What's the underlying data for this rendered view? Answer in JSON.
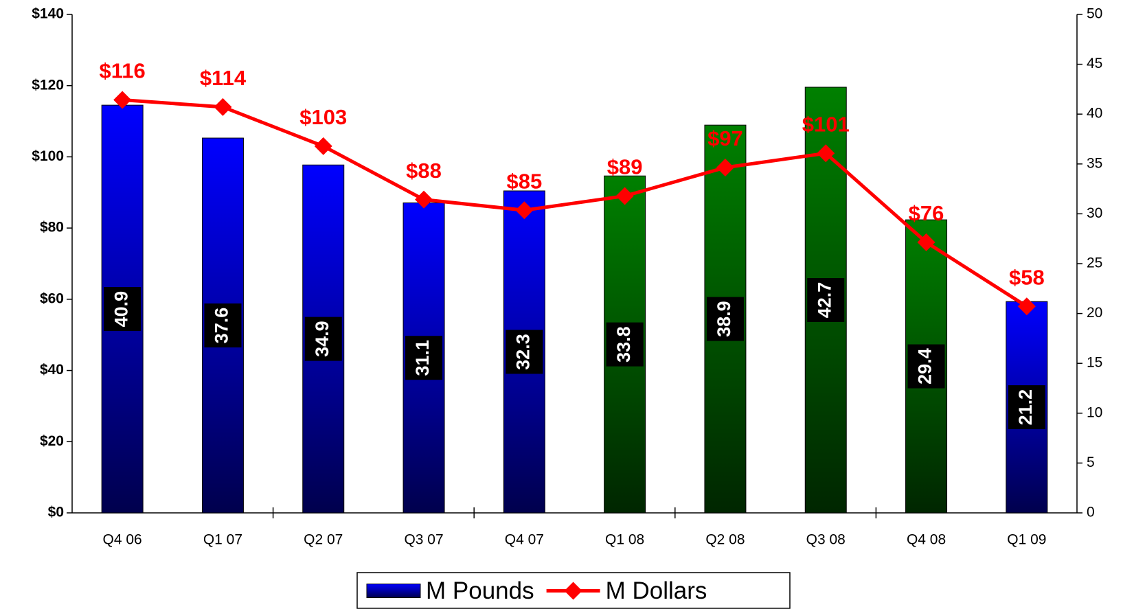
{
  "chart_data": {
    "type": "bar",
    "categories": [
      "Q4 06",
      "Q1 07",
      "Q2 07",
      "Q3 07",
      "Q4 07",
      "Q1 08",
      "Q2 08",
      "Q3 08",
      "Q4 08",
      "Q1 09"
    ],
    "series": [
      {
        "name": "M Pounds",
        "type": "bar",
        "axis": "y2",
        "color": "#0000ff",
        "colors": [
          "#0000ff",
          "#0000ff",
          "#0000ff",
          "#0000ff",
          "#0000ff",
          "#008000",
          "#008000",
          "#008000",
          "#008000",
          "#0000ff"
        ],
        "values": [
          40.9,
          37.6,
          34.9,
          31.1,
          32.3,
          33.8,
          38.9,
          42.7,
          29.4,
          21.2
        ]
      },
      {
        "name": "M Dollars",
        "type": "line",
        "axis": "y",
        "color": "#ff0000",
        "values": [
          116,
          114,
          103,
          88,
          85,
          89,
          97,
          101,
          76,
          58
        ],
        "value_labels": [
          "$116",
          "$114",
          "$103",
          "$88",
          "$85",
          "$89",
          "$97",
          "$101",
          "$76",
          "$58"
        ]
      }
    ],
    "ylim": [
      0,
      140
    ],
    "yticks": [
      {
        "value": 0,
        "label": "$0"
      },
      {
        "value": 20,
        "label": "$20"
      },
      {
        "value": 40,
        "label": "$40"
      },
      {
        "value": 60,
        "label": "$60"
      },
      {
        "value": 80,
        "label": "$80"
      },
      {
        "value": 100,
        "label": "$100"
      },
      {
        "value": 120,
        "label": "$120"
      },
      {
        "value": 140,
        "label": "$140"
      }
    ],
    "y2lim": [
      0,
      50
    ],
    "y2ticks": [
      0,
      5,
      10,
      15,
      20,
      25,
      30,
      35,
      40,
      45,
      50
    ],
    "legend": "bottom"
  }
}
